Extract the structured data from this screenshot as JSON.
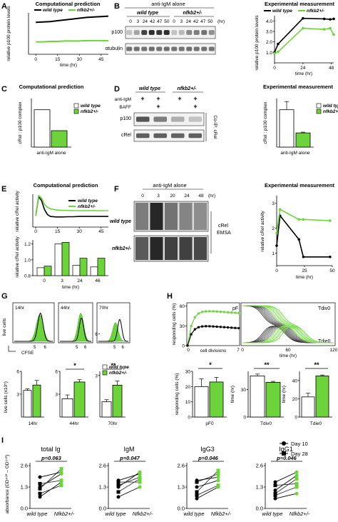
{
  "panels": {
    "A": {
      "letter": "A",
      "title": "Computational prediction",
      "ylabel": "relative p100 protein levels",
      "xlabel": "time (hr)",
      "xticks": [
        "0",
        "15",
        "30",
        "45"
      ],
      "legend": [
        "wild type",
        "nfkb2+/-"
      ]
    },
    "B": {
      "letter": "B",
      "header": "anti-IgM alone",
      "groups": [
        "wild type",
        "nfkb2+/-"
      ],
      "lanes": [
        "0",
        "3",
        "24",
        "42",
        "47",
        "50",
        "0",
        "3",
        "24",
        "42",
        "47",
        "50"
      ],
      "unit": "(hr)",
      "rows": [
        "p100",
        "αtubulin"
      ],
      "plot_title": "Experimental measurement",
      "legend": [
        "wild type",
        "nfkb2+/-"
      ],
      "ylabel": "relative p100 protein levels",
      "xlabel": "time (hr)",
      "xticks": [
        "0",
        "24",
        "48"
      ],
      "yticks": [
        "1.0",
        "2.0",
        "3.0",
        "4.0"
      ]
    },
    "C": {
      "letter": "C",
      "title": "Computational prediction",
      "ylabel": "cRel : p100 complex",
      "xlabel": "anti-IgM alone",
      "legend": [
        "wild type",
        "nfkb2+/-"
      ]
    },
    "D": {
      "letter": "D",
      "groups": [
        "wild type",
        "nfkb2+/-"
      ],
      "treatments": [
        "anti-IgM",
        "BAFF"
      ],
      "treat_signs": [
        [
          "+",
          "+",
          "+",
          "+"
        ],
        [
          "",
          "+",
          "",
          "+"
        ]
      ],
      "rows": [
        "p100",
        "cRel"
      ],
      "side_label": "Co-IP: cRel",
      "plot_title": "Experimental measurement",
      "legend": [
        "wild type",
        "nfkb2+/-"
      ],
      "ylabel": "cRel : p100 complex",
      "xlabel": "anti-IgM alone"
    },
    "E": {
      "letter": "E",
      "title": "Computational prediction",
      "ylabel_top": "relative cRel activity",
      "ylabel_bottom": "relative cRel activity",
      "xticks_top": [
        "0",
        "15",
        "30",
        "45"
      ],
      "xticks_bottom": [
        "0",
        "3",
        "24",
        "46"
      ],
      "xlabel": "time (hr)",
      "yticks_bottom": [
        "0.8",
        "1.0",
        "1.2"
      ],
      "legend": [
        "wild type",
        "nfkb2+/-"
      ]
    },
    "F": {
      "letter": "F",
      "header": "anti-IgM alone",
      "lanes": [
        "0",
        "3",
        "20",
        "24",
        "48"
      ],
      "unit": "(hr)",
      "rows": [
        "wild type",
        "nfkb2+/-"
      ],
      "side_label": "cRel EMSA",
      "plot_title": "Experimental measurement",
      "ylabel": "relative cRel activity",
      "xlabel": "time (hr)",
      "xticks": [
        "0",
        "25",
        "50"
      ],
      "yticks": [
        "1",
        "2",
        "3"
      ]
    },
    "G": {
      "letter": "G",
      "hist_labels": [
        "14hr",
        "44hr",
        "70hr"
      ],
      "hist_xticks": [
        "5",
        "6"
      ],
      "hist_ylabel": "live cells",
      "hist_xlabel": "CFSE",
      "bar_ylabel": "live cells (x10⁵)",
      "bar_yticks": [
        [
          "3",
          "6"
        ],
        [
          "3",
          "6"
        ],
        [
          "3",
          "6"
        ]
      ],
      "bar_xlabels": [
        "14hr",
        "44hr",
        "70hr"
      ],
      "sig": [
        "",
        "*",
        "**"
      ],
      "legend": [
        "wild type",
        "nfkb2+/-"
      ]
    },
    "H": {
      "letter": "H",
      "ylabel": "responding cells (%)",
      "yticks": [
        "0",
        "30",
        "60"
      ],
      "xlabel_left": "cell divisions",
      "xticks_left": [
        "0",
        "7"
      ],
      "label_pF": "pF",
      "label_tdiv": "Tdiv0",
      "label_tdie": "Tdie0",
      "xlabel_right": "time (hr)",
      "xticks_right": [
        "0",
        "60",
        "120"
      ],
      "bars": [
        {
          "label": "pF0",
          "ylabel": "responding cells (%)",
          "yticks": [
            "0",
            "10",
            "20",
            "30"
          ],
          "sig": "*"
        },
        {
          "label": "Tdiv0",
          "ylabel": "time (hr)",
          "yticks": [
            "0",
            "30"
          ],
          "sig": "**"
        },
        {
          "label": "Tdie0",
          "ylabel": "time (hr)",
          "yticks": [
            "0",
            "20",
            "40"
          ],
          "sig": "**"
        }
      ]
    },
    "I": {
      "letter": "I",
      "ylabel": "absorbance (OD⁴⁵⁰ – OD⁵⁷⁰)",
      "legend": [
        "Day 10",
        "Day 28"
      ],
      "subplots": [
        {
          "title": "total Ig",
          "p": "p=0.063",
          "yticks": [
            "0.0",
            "1.3",
            "2.6"
          ]
        },
        {
          "title": "IgM",
          "p": "p=0.047",
          "yticks": [
            "0.0",
            "1.3",
            "2.6"
          ]
        },
        {
          "title": "IgG3",
          "p": "p=0.046",
          "yticks": [
            "0.0",
            "1.3",
            "2.6"
          ]
        },
        {
          "title": "IgG1",
          "p": "p=0.046",
          "yticks": [
            "0.0",
            "1.3",
            "2.6"
          ]
        }
      ],
      "xlabels": [
        "wild type",
        "Nfkb2+/-"
      ]
    }
  },
  "colors": {
    "wt": "#000000",
    "nfkb2": "#6cd43a",
    "nfkb2_light": "#a6ec84"
  },
  "chart_data": [
    {
      "id": "A",
      "type": "line",
      "x": [
        0,
        5,
        10,
        15,
        20,
        25,
        30,
        35,
        40,
        45,
        50
      ],
      "series": [
        {
          "name": "wild type",
          "values": [
            0.77,
            0.78,
            0.79,
            0.81,
            0.83,
            0.85,
            0.87,
            0.89,
            0.9,
            0.91,
            0.92
          ]
        },
        {
          "name": "nfkb2+/-",
          "values": [
            0.3,
            0.3,
            0.31,
            0.31,
            0.32,
            0.32,
            0.32,
            0.33,
            0.33,
            0.33,
            0.33
          ]
        }
      ],
      "ylim": [
        0,
        1
      ]
    },
    {
      "id": "B",
      "type": "line",
      "x": [
        0,
        3,
        24,
        42,
        47,
        50
      ],
      "ylim": [
        0,
        4.5
      ],
      "series": [
        {
          "name": "wild type",
          "values": [
            1.0,
            1.8,
            4.25,
            4.2,
            4.15,
            4.2
          ]
        },
        {
          "name": "nfkb2+/-",
          "values": [
            0.9,
            1.05,
            3.3,
            3.2,
            3.3,
            2.7
          ]
        }
      ]
    },
    {
      "id": "C",
      "type": "bar",
      "categories": [
        "wild type",
        "nfkb2+/-"
      ],
      "values": [
        1.0,
        0.44
      ],
      "ylim": [
        0,
        1.3
      ]
    },
    {
      "id": "D",
      "type": "bar",
      "categories": [
        "wild type",
        "nfkb2+/-"
      ],
      "values": [
        1.0,
        0.38
      ],
      "errors": [
        0.22,
        0.02
      ],
      "ylim": [
        0,
        1.3
      ]
    },
    {
      "id": "E_top",
      "type": "line",
      "x": [
        0,
        2,
        4,
        6,
        8,
        10,
        14,
        18,
        22,
        26,
        30,
        35,
        40,
        45,
        50
      ],
      "ylim": [
        0,
        1.3
      ],
      "series": [
        {
          "name": "wild type",
          "values": [
            0.45,
            1.2,
            1.05,
            0.7,
            0.5,
            0.42,
            0.4,
            0.4,
            0.41,
            0.41,
            0.42,
            0.42,
            0.42,
            0.42,
            0.42
          ]
        },
        {
          "name": "nfkb2+/-",
          "values": [
            0.45,
            1.25,
            1.15,
            0.9,
            0.78,
            0.72,
            0.68,
            0.66,
            0.66,
            0.65,
            0.65,
            0.65,
            0.65,
            0.65,
            0.65
          ]
        }
      ]
    },
    {
      "id": "E_bottom",
      "type": "bar",
      "categories": [
        "0",
        "3",
        "24",
        "46"
      ],
      "ylim": [
        0.8,
        1.25
      ],
      "series": [
        {
          "name": "wild type",
          "values": [
            0.9,
            1.2,
            0.93,
            0.91
          ]
        },
        {
          "name": "nfkb2+/-",
          "values": [
            0.92,
            1.22,
            1.02,
            1.02
          ]
        }
      ]
    },
    {
      "id": "F",
      "type": "line",
      "x": [
        0,
        3,
        20,
        24,
        48
      ],
      "ylim": [
        0.5,
        3.3
      ],
      "series": [
        {
          "name": "wild type",
          "values": [
            1.3,
            2.5,
            1.55,
            0.85,
            0.85
          ]
        },
        {
          "name": "nfkb2+/-",
          "values": [
            1.8,
            2.75,
            2.35,
            2.35,
            2.3
          ]
        }
      ]
    },
    {
      "id": "G_bars",
      "type": "bar",
      "categories": [
        "14hr",
        "44hr",
        "70hr"
      ],
      "panels": [
        {
          "ylim": [
            0,
            6
          ],
          "values": [
            3.5,
            4.2
          ],
          "errors": [
            0.2,
            0.6
          ]
        },
        {
          "ylim": [
            0,
            6
          ],
          "values": [
            2.4,
            4.6
          ],
          "errors": [
            0.5,
            0.3
          ]
        },
        {
          "ylim": [
            0,
            3.3
          ],
          "values": [
            1.1,
            2.3
          ],
          "errors": [
            0.15,
            0.3
          ]
        }
      ]
    },
    {
      "id": "H_bars",
      "type": "bar",
      "categories": [
        "pF0",
        "Tdiv0",
        "Tdie0"
      ],
      "panels": [
        {
          "ylim": [
            0,
            30
          ],
          "values": [
            20,
            23
          ],
          "errors": [
            5,
            3
          ]
        },
        {
          "ylim": [
            0,
            50
          ],
          "values": [
            45,
            38
          ],
          "errors": [
            2,
            1
          ]
        },
        {
          "ylim": [
            0,
            50
          ],
          "values": [
            22,
            45
          ],
          "errors": [
            4,
            1
          ]
        }
      ]
    },
    {
      "id": "I",
      "type": "scatter",
      "groups": [
        "wild type",
        "Nfkb2+/-"
      ],
      "ylim": [
        0,
        2.6
      ],
      "subplots": [
        {
          "pairs": [
            [
              0.7,
              1.6
            ],
            [
              0.9,
              1.4
            ],
            [
              1.3,
              2.1
            ],
            [
              1.2,
              2.4
            ],
            [
              1.9,
              2.2
            ],
            [
              1.5,
              1.7
            ]
          ]
        },
        {
          "pairs": [
            [
              0.7,
              1.3
            ],
            [
              1.0,
              1.8
            ],
            [
              1.3,
              2.2
            ],
            [
              1.4,
              1.9
            ],
            [
              1.7,
              2.1
            ],
            [
              1.6,
              1.6
            ]
          ]
        },
        {
          "pairs": [
            [
              0.6,
              1.3
            ],
            [
              1.0,
              2.3
            ],
            [
              1.3,
              1.7
            ],
            [
              1.6,
              2.1
            ],
            [
              1.7,
              1.9
            ],
            [
              0.8,
              1.4
            ]
          ]
        },
        {
          "pairs": [
            [
              0.6,
              0.9
            ],
            [
              0.9,
              1.8
            ],
            [
              1.1,
              2.0
            ],
            [
              1.4,
              1.5
            ],
            [
              1.6,
              2.2
            ],
            [
              0.8,
              1.3
            ]
          ]
        }
      ]
    }
  ]
}
